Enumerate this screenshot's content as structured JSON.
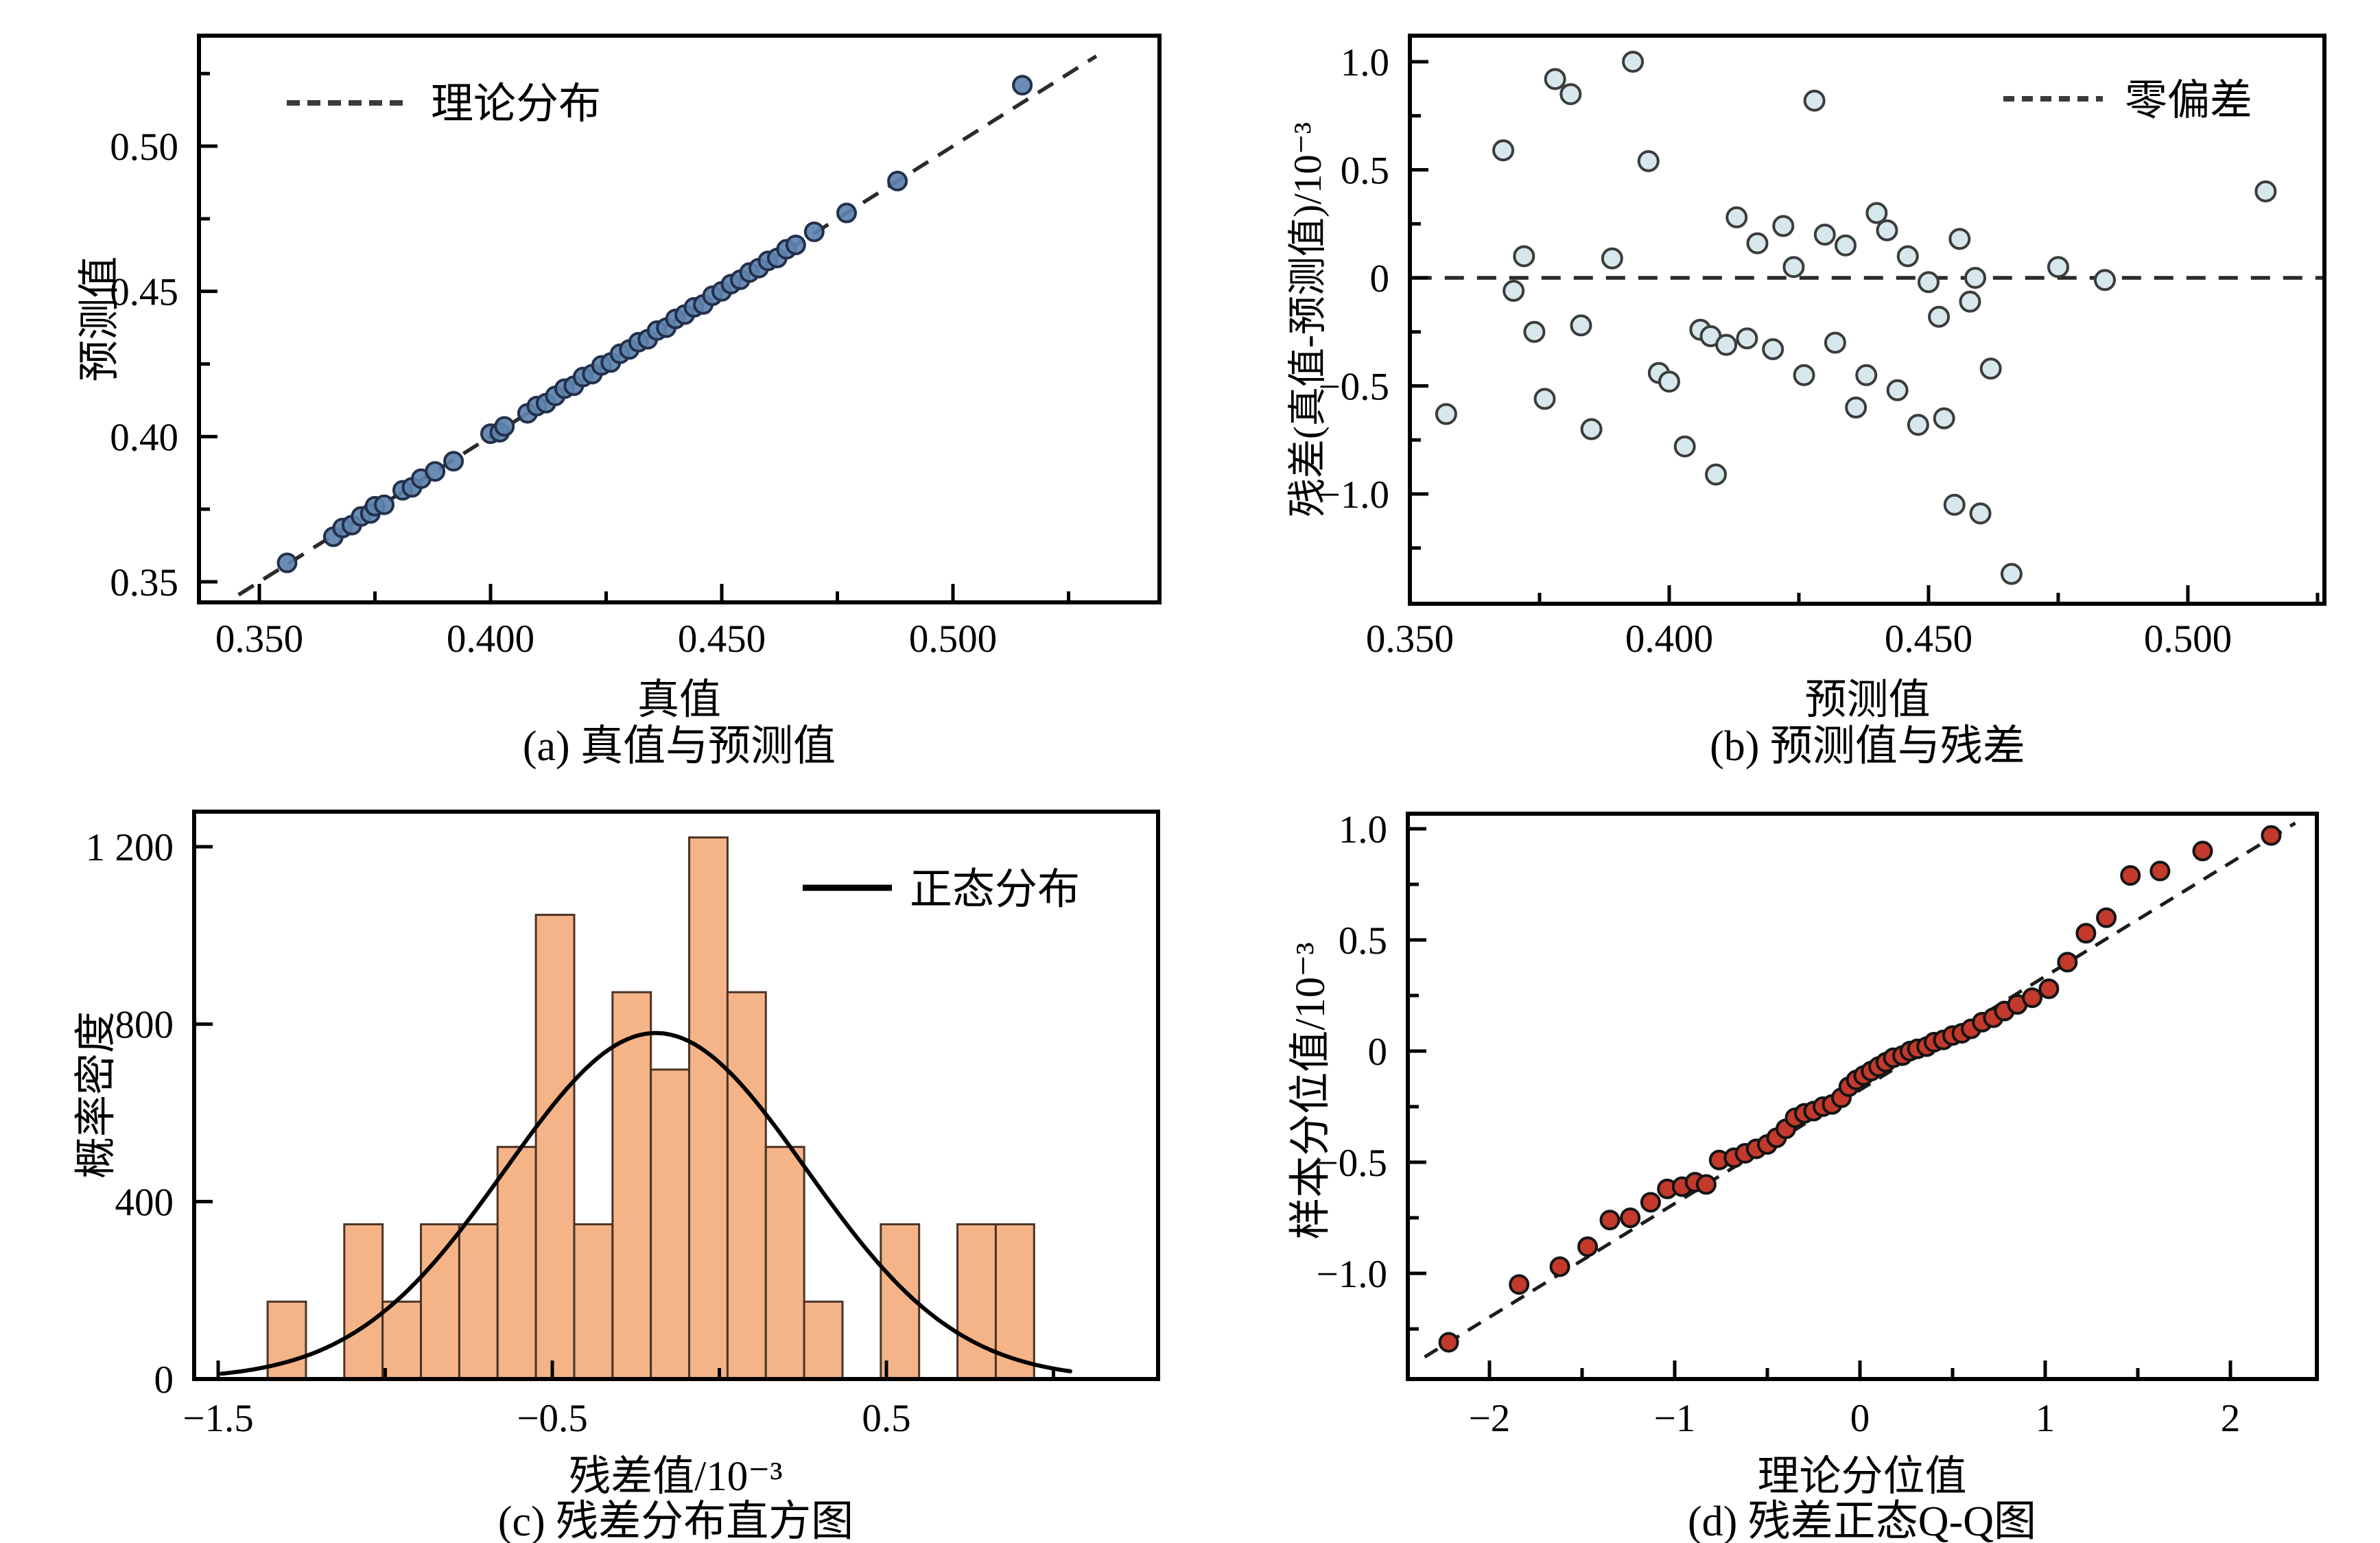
{
  "page": {
    "background": "#ffffff"
  },
  "chart_data": [
    {
      "id": "a",
      "type": "scatter",
      "caption": "(a) 真值与预测值",
      "xlabel": "真值",
      "ylabel": "预测值",
      "xlim": [
        0.33694,
        0.54466
      ],
      "ylim": [
        0.3429,
        0.53805
      ],
      "xticks": {
        "major": [
          {
            "v": 0.35,
            "label": "0.350"
          },
          {
            "v": 0.4,
            "label": "0.400"
          },
          {
            "v": 0.45,
            "label": "0.450"
          },
          {
            "v": 0.5,
            "label": "0.500"
          }
        ],
        "minor": [
          0.375,
          0.425,
          0.475,
          0.525
        ]
      },
      "yticks": {
        "major": [
          {
            "v": 0.35,
            "label": "0.35"
          },
          {
            "v": 0.4,
            "label": "0.40"
          },
          {
            "v": 0.45,
            "label": "0.45"
          },
          {
            "v": 0.5,
            "label": "0.50"
          }
        ],
        "minor": [
          0.375,
          0.425,
          0.475,
          0.525
        ]
      },
      "legend": {
        "label": "理论分布",
        "line_style": "dashed"
      },
      "line": {
        "style": "dashed",
        "color": "#2b2b2b",
        "width": 5.5,
        "dash": [
          26,
          17
        ],
        "x1": 0.3455,
        "y1": 0.3455,
        "x2": 0.531,
        "y2": 0.531
      },
      "marker": {
        "shape": "circle",
        "fill": "#5E83AE",
        "stroke": "#23304C",
        "r": 13,
        "stroke_width": 4,
        "opacity": 0.92
      },
      "points": [
        [
          0.356,
          0.3565
        ],
        [
          0.366,
          0.3655
        ],
        [
          0.368,
          0.3685
        ],
        [
          0.37,
          0.3695
        ],
        [
          0.372,
          0.3725
        ],
        [
          0.374,
          0.3735
        ],
        [
          0.375,
          0.376
        ],
        [
          0.377,
          0.3765
        ],
        [
          0.381,
          0.3815
        ],
        [
          0.383,
          0.3825
        ],
        [
          0.385,
          0.3855
        ],
        [
          0.388,
          0.388
        ],
        [
          0.392,
          0.3915
        ],
        [
          0.4,
          0.401
        ],
        [
          0.402,
          0.4015
        ],
        [
          0.403,
          0.4035
        ],
        [
          0.408,
          0.408
        ],
        [
          0.41,
          0.4105
        ],
        [
          0.412,
          0.4115
        ],
        [
          0.414,
          0.414
        ],
        [
          0.416,
          0.4165
        ],
        [
          0.418,
          0.4175
        ],
        [
          0.42,
          0.4205
        ],
        [
          0.422,
          0.4215
        ],
        [
          0.424,
          0.4245
        ],
        [
          0.426,
          0.4255
        ],
        [
          0.428,
          0.4285
        ],
        [
          0.43,
          0.43
        ],
        [
          0.432,
          0.4325
        ],
        [
          0.434,
          0.4335
        ],
        [
          0.436,
          0.4365
        ],
        [
          0.438,
          0.4375
        ],
        [
          0.44,
          0.4405
        ],
        [
          0.442,
          0.442
        ],
        [
          0.444,
          0.4445
        ],
        [
          0.446,
          0.4455
        ],
        [
          0.448,
          0.4485
        ],
        [
          0.45,
          0.45
        ],
        [
          0.452,
          0.4525
        ],
        [
          0.454,
          0.454
        ],
        [
          0.456,
          0.4565
        ],
        [
          0.458,
          0.458
        ],
        [
          0.46,
          0.4605
        ],
        [
          0.462,
          0.4615
        ],
        [
          0.464,
          0.4645
        ],
        [
          0.466,
          0.466
        ],
        [
          0.47,
          0.4705
        ],
        [
          0.477,
          0.477
        ],
        [
          0.488,
          0.488
        ],
        [
          0.515,
          0.521
        ]
      ]
    },
    {
      "id": "b",
      "type": "scatter",
      "caption": "(b) 预测值与残差",
      "xlabel": "预测值",
      "ylabel": "残差(真值-预测值)/10⁻³",
      "xlim": [
        0.35,
        0.52633
      ],
      "ylim": [
        -1.5079,
        1.1206
      ],
      "xticks": {
        "major": [
          {
            "v": 0.35,
            "label": "0.350"
          },
          {
            "v": 0.4,
            "label": "0.400"
          },
          {
            "v": 0.45,
            "label": "0.450"
          },
          {
            "v": 0.5,
            "label": "0.500"
          }
        ],
        "minor": [
          0.375,
          0.425,
          0.475,
          0.525
        ]
      },
      "yticks": {
        "major": [
          {
            "v": 1.0,
            "label": "1.0"
          },
          {
            "v": 0.5,
            "label": "0.5"
          },
          {
            "v": 0,
            "label": "0"
          },
          {
            "v": -0.5,
            "label": "−0.5"
          },
          {
            "v": -1.0,
            "label": "−1.0"
          }
        ],
        "minor": [
          0.75,
          0.25,
          -0.25,
          -0.75,
          -1.25
        ]
      },
      "legend": {
        "label": "零偏差",
        "line_style": "dashed"
      },
      "line": {
        "style": "dashed",
        "color": "#2b2b2b",
        "width": 5.5,
        "dash": [
          28,
          19
        ],
        "x1": 0.3505,
        "y1": 0,
        "x2": 0.5262,
        "y2": 0
      },
      "marker": {
        "shape": "circle",
        "fill": "#D7E8EC",
        "stroke": "#3c3c3c",
        "r": 14,
        "stroke_width": 4,
        "opacity": 1
      },
      "points": [
        [
          0.357,
          -0.63
        ],
        [
          0.368,
          0.59
        ],
        [
          0.37,
          -0.06
        ],
        [
          0.372,
          0.1
        ],
        [
          0.374,
          -0.25
        ],
        [
          0.376,
          -0.56
        ],
        [
          0.378,
          0.92
        ],
        [
          0.381,
          0.85
        ],
        [
          0.383,
          -0.22
        ],
        [
          0.385,
          -0.7
        ],
        [
          0.389,
          0.09
        ],
        [
          0.393,
          1.0
        ],
        [
          0.396,
          0.54
        ],
        [
          0.398,
          -0.44
        ],
        [
          0.4,
          -0.48
        ],
        [
          0.403,
          -0.78
        ],
        [
          0.406,
          -0.24
        ],
        [
          0.408,
          -0.27
        ],
        [
          0.409,
          -0.91
        ],
        [
          0.411,
          -0.31
        ],
        [
          0.413,
          0.28
        ],
        [
          0.415,
          -0.28
        ],
        [
          0.417,
          0.16
        ],
        [
          0.42,
          -0.33
        ],
        [
          0.422,
          0.24
        ],
        [
          0.424,
          0.05
        ],
        [
          0.426,
          -0.45
        ],
        [
          0.428,
          0.82
        ],
        [
          0.43,
          0.2
        ],
        [
          0.432,
          -0.3
        ],
        [
          0.434,
          0.15
        ],
        [
          0.436,
          -0.6
        ],
        [
          0.438,
          -0.45
        ],
        [
          0.44,
          0.3
        ],
        [
          0.442,
          0.22
        ],
        [
          0.444,
          -0.52
        ],
        [
          0.446,
          0.1
        ],
        [
          0.448,
          -0.68
        ],
        [
          0.45,
          -0.02
        ],
        [
          0.452,
          -0.18
        ],
        [
          0.453,
          -0.65
        ],
        [
          0.455,
          -1.05
        ],
        [
          0.456,
          0.18
        ],
        [
          0.458,
          -0.11
        ],
        [
          0.459,
          0.0
        ],
        [
          0.46,
          -1.09
        ],
        [
          0.462,
          -0.42
        ],
        [
          0.466,
          -1.37
        ],
        [
          0.475,
          0.05
        ],
        [
          0.484,
          -0.01
        ],
        [
          0.515,
          0.4
        ]
      ]
    },
    {
      "id": "c",
      "type": "histogram",
      "caption": "(c) 残差分布直方图",
      "xlabel": "残差值/10⁻³",
      "ylabel": "概率密度",
      "xlim": [
        -1.5719,
        1.3131
      ],
      "ylim": [
        0,
        1279
      ],
      "xticks": {
        "major": [
          {
            "v": -1.5,
            "label": "−1.5"
          },
          {
            "v": -0.5,
            "label": "−0.5"
          },
          {
            "v": 0.5,
            "label": "0.5"
          }
        ],
        "minor": [
          -1.0,
          0,
          1.0
        ]
      },
      "yticks": {
        "major": [
          {
            "v": 0,
            "label": "0"
          },
          {
            "v": 400,
            "label": "400"
          },
          {
            "v": 800,
            "label": "800"
          },
          {
            "v": 1200,
            "label": "1 200"
          }
        ],
        "minor": []
      },
      "legend": {
        "label": "正态分布",
        "line_style": "solid"
      },
      "bar_style": {
        "fill": "#F5B487",
        "stroke": "#4a3426",
        "stroke_width": 3
      },
      "bins": {
        "start": -1.352,
        "width": 0.1147,
        "counts": [
          1,
          0,
          2,
          1,
          2,
          2,
          3,
          6,
          2,
          5,
          4,
          7,
          5,
          3,
          1,
          0,
          2,
          0,
          2,
          2
        ],
        "density_per_count": 174.4
      },
      "curve": {
        "shape": "gaussian",
        "amp": 780,
        "mean": -0.19,
        "sigma": 0.45,
        "x_from": -1.49,
        "x_to": 1.05,
        "color": "#000000",
        "width": 6
      }
    },
    {
      "id": "d",
      "type": "qq-scatter",
      "caption": "(d) 残差正态Q-Q图",
      "xlabel": "理论分位值",
      "ylabel": "样本分位值/10⁻³",
      "xlim": [
        -2.4407,
        2.4667
      ],
      "ylim": [
        -1.4753,
        1.0679
      ],
      "xticks": {
        "major": [
          {
            "v": -2,
            "label": "−2"
          },
          {
            "v": -1,
            "label": "−1"
          },
          {
            "v": 0,
            "label": "0"
          },
          {
            "v": 1,
            "label": "1"
          },
          {
            "v": 2,
            "label": "2"
          }
        ],
        "minor": [
          -1.5,
          -0.5,
          0.5,
          1.5
        ]
      },
      "yticks": {
        "major": [
          {
            "v": 1.0,
            "label": "1.0"
          },
          {
            "v": 0.5,
            "label": "0.5"
          },
          {
            "v": 0,
            "label": "0"
          },
          {
            "v": -0.5,
            "label": "−0.5"
          },
          {
            "v": -1.0,
            "label": "−1.0"
          }
        ],
        "minor": [
          0.75,
          0.25,
          -0.25,
          -0.75,
          -1.25
        ]
      },
      "line": {
        "style": "dashed",
        "color": "#1c1c1c",
        "width": 5,
        "dash": [
          22,
          15
        ],
        "x1": -2.35,
        "y1": -1.376,
        "x2": 2.35,
        "y2": 1.026
      },
      "marker": {
        "shape": "circle",
        "fill": "#C33A2C",
        "stroke": "#141414",
        "r": 13,
        "stroke_width": 4,
        "opacity": 1
      },
      "points": [
        [
          -2.22,
          -1.31
        ],
        [
          -1.84,
          -1.05
        ],
        [
          -1.62,
          -0.97
        ],
        [
          -1.47,
          -0.88
        ],
        [
          -1.35,
          -0.76
        ],
        [
          -1.24,
          -0.75
        ],
        [
          -1.13,
          -0.68
        ],
        [
          -1.04,
          -0.62
        ],
        [
          -0.96,
          -0.61
        ],
        [
          -0.89,
          -0.59
        ],
        [
          -0.83,
          -0.6
        ],
        [
          -0.76,
          -0.49
        ],
        [
          -0.68,
          -0.48
        ],
        [
          -0.62,
          -0.46
        ],
        [
          -0.56,
          -0.44
        ],
        [
          -0.5,
          -0.42
        ],
        [
          -0.45,
          -0.39
        ],
        [
          -0.4,
          -0.35
        ],
        [
          -0.35,
          -0.3
        ],
        [
          -0.3,
          -0.28
        ],
        [
          -0.25,
          -0.27
        ],
        [
          -0.2,
          -0.25
        ],
        [
          -0.15,
          -0.24
        ],
        [
          -0.1,
          -0.21
        ],
        [
          -0.06,
          -0.16
        ],
        [
          -0.02,
          -0.13
        ],
        [
          0.02,
          -0.11
        ],
        [
          0.06,
          -0.09
        ],
        [
          0.1,
          -0.07
        ],
        [
          0.14,
          -0.05
        ],
        [
          0.18,
          -0.03
        ],
        [
          0.23,
          -0.02
        ],
        [
          0.27,
          0.0
        ],
        [
          0.31,
          0.01
        ],
        [
          0.36,
          0.02
        ],
        [
          0.4,
          0.04
        ],
        [
          0.45,
          0.05
        ],
        [
          0.5,
          0.07
        ],
        [
          0.55,
          0.08
        ],
        [
          0.6,
          0.1
        ],
        [
          0.66,
          0.13
        ],
        [
          0.72,
          0.15
        ],
        [
          0.78,
          0.18
        ],
        [
          0.85,
          0.21
        ],
        [
          0.93,
          0.24
        ],
        [
          1.02,
          0.28
        ],
        [
          1.12,
          0.4
        ],
        [
          1.22,
          0.53
        ],
        [
          1.33,
          0.6
        ],
        [
          1.46,
          0.79
        ],
        [
          1.62,
          0.81
        ],
        [
          1.85,
          0.9
        ],
        [
          2.22,
          0.97
        ]
      ]
    }
  ]
}
